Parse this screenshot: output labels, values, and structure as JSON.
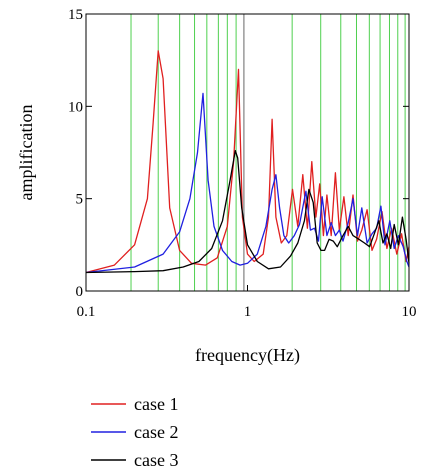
{
  "chart_data": {
    "type": "line",
    "title": "",
    "xlabel": "frequency(Hz)",
    "ylabel": "amplification",
    "x_scale": "log",
    "xlim": [
      0.1,
      10
    ],
    "ylim": [
      0,
      15
    ],
    "x_ticks": [
      {
        "value": 0.1,
        "label": "0.1"
      },
      {
        "value": 1,
        "label": "1"
      },
      {
        "value": 10,
        "label": "10"
      }
    ],
    "y_ticks": [
      {
        "value": 0,
        "label": "0"
      },
      {
        "value": 5,
        "label": "5"
      },
      {
        "value": 10,
        "label": "10"
      },
      {
        "value": 15,
        "label": "15"
      }
    ],
    "vertical_lines": {
      "color": "#4fd04f",
      "x": [
        0.19,
        0.28,
        0.38,
        0.47,
        0.56,
        0.66,
        0.75,
        0.85,
        1.89,
        2.84,
        3.78,
        4.73,
        5.68,
        6.62,
        7.57,
        8.52,
        9.46
      ]
    },
    "reference_line": {
      "x": 0.95,
      "color": "#808080"
    },
    "legend_position": "bottom-left",
    "series": [
      {
        "name": "case 1",
        "color": "#e02020",
        "x": [
          0.1,
          0.15,
          0.2,
          0.24,
          0.26,
          0.28,
          0.3,
          0.33,
          0.38,
          0.45,
          0.55,
          0.65,
          0.75,
          0.82,
          0.88,
          0.93,
          1.0,
          1.1,
          1.25,
          1.35,
          1.42,
          1.5,
          1.62,
          1.75,
          1.9,
          2.05,
          2.2,
          2.35,
          2.5,
          2.65,
          2.8,
          2.95,
          3.1,
          3.3,
          3.5,
          3.7,
          3.95,
          4.2,
          4.5,
          4.8,
          5.1,
          5.5,
          5.9,
          6.3,
          6.8,
          7.3,
          7.8,
          8.4,
          9.0,
          9.6,
          10.0
        ],
        "y": [
          1.0,
          1.4,
          2.5,
          5.0,
          9.0,
          13.0,
          11.5,
          4.5,
          2.2,
          1.5,
          1.4,
          1.8,
          3.5,
          7.0,
          12.0,
          4.0,
          2.0,
          1.6,
          2.0,
          4.0,
          9.3,
          4.0,
          2.6,
          3.0,
          5.5,
          3.5,
          6.3,
          3.4,
          7.0,
          4.0,
          5.8,
          3.0,
          5.2,
          3.0,
          6.4,
          3.3,
          5.1,
          3.0,
          5.2,
          2.7,
          3.3,
          4.4,
          2.2,
          2.8,
          4.3,
          2.3,
          3.4,
          2.0,
          3.1,
          1.6,
          2.4
        ]
      },
      {
        "name": "case 2",
        "color": "#2020e0",
        "x": [
          0.1,
          0.2,
          0.3,
          0.38,
          0.44,
          0.49,
          0.53,
          0.57,
          0.62,
          0.7,
          0.8,
          0.9,
          1.0,
          1.15,
          1.3,
          1.42,
          1.5,
          1.58,
          1.68,
          1.8,
          1.95,
          2.1,
          2.3,
          2.45,
          2.6,
          2.75,
          2.9,
          3.1,
          3.3,
          3.5,
          3.7,
          3.9,
          4.2,
          4.5,
          4.8,
          5.1,
          5.5,
          5.9,
          6.3,
          6.7,
          7.1,
          7.6,
          8.1,
          8.6,
          9.2,
          9.7,
          10.0
        ],
        "y": [
          1.0,
          1.3,
          2.0,
          3.2,
          5.0,
          7.5,
          10.7,
          6.0,
          3.5,
          2.2,
          1.6,
          1.4,
          1.5,
          2.0,
          3.5,
          5.5,
          6.3,
          4.5,
          3.0,
          2.6,
          3.0,
          3.6,
          5.4,
          3.3,
          3.4,
          2.7,
          5.1,
          3.0,
          3.7,
          3.0,
          3.3,
          2.7,
          3.7,
          5.0,
          3.0,
          4.5,
          2.6,
          3.1,
          3.4,
          4.6,
          2.5,
          3.8,
          2.3,
          3.0,
          2.4,
          1.6,
          1.3
        ]
      },
      {
        "name": "case 3",
        "color": "#000000",
        "x": [
          0.1,
          0.2,
          0.3,
          0.4,
          0.5,
          0.6,
          0.7,
          0.78,
          0.84,
          0.87,
          0.92,
          1.0,
          1.15,
          1.35,
          1.6,
          1.85,
          2.05,
          2.25,
          2.4,
          2.55,
          2.7,
          2.85,
          3.0,
          3.2,
          3.4,
          3.6,
          3.9,
          4.2,
          4.5,
          4.9,
          5.3,
          5.7,
          6.1,
          6.5,
          6.9,
          7.3,
          7.7,
          8.1,
          8.6,
          9.1,
          9.6,
          10.0
        ],
        "y": [
          1.0,
          1.05,
          1.1,
          1.3,
          1.6,
          2.3,
          3.8,
          6.0,
          7.6,
          7.2,
          4.5,
          2.5,
          1.6,
          1.2,
          1.3,
          1.9,
          2.6,
          3.8,
          5.5,
          4.8,
          2.6,
          2.2,
          2.2,
          2.8,
          2.7,
          2.4,
          3.0,
          3.5,
          3.0,
          2.8,
          2.6,
          2.4,
          3.1,
          3.8,
          2.6,
          3.1,
          2.3,
          3.6,
          2.5,
          4.0,
          2.8,
          1.5
        ]
      }
    ]
  }
}
